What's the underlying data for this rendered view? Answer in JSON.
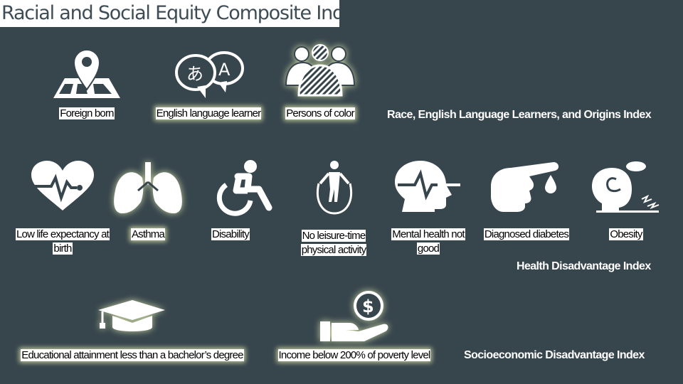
{
  "title": "Racial and Social Equity Composite Index",
  "colors": {
    "background": "#37454d",
    "icon": "#ffffff",
    "label_bg": "#ffffff",
    "glow": "#ebf5b4"
  },
  "race_index": {
    "heading": "Race, English Language Learners, and Origins Index",
    "items": [
      {
        "label": "Foreign born",
        "icon": "map-pin-icon"
      },
      {
        "label": "English language learner",
        "icon": "speech-bubbles-icon"
      },
      {
        "label": "Persons of color",
        "icon": "group-people-icon"
      }
    ]
  },
  "health_index": {
    "heading": "Health Disadvantage Index",
    "items": [
      {
        "label": "Low life expectancy at birth",
        "icon": "heart-pulse-icon"
      },
      {
        "label": "Asthma",
        "icon": "lungs-icon"
      },
      {
        "label": "Disability",
        "icon": "wheelchair-icon"
      },
      {
        "label": "No leisure-time physical activity",
        "icon": "jump-rope-icon"
      },
      {
        "label": "Mental health not good",
        "icon": "head-pulse-icon"
      },
      {
        "label": "Diagnosed diabetes",
        "icon": "finger-drop-icon"
      },
      {
        "label": "Obesity",
        "icon": "person-scale-icon"
      }
    ]
  },
  "socio_index": {
    "heading": "Socioeconomic Disadvantage Index",
    "items": [
      {
        "label": "Educational attainment less than a bachelor’s degree",
        "icon": "graduation-cap-icon"
      },
      {
        "label": "Income below 200% of poverty level",
        "icon": "hand-coin-icon"
      }
    ]
  }
}
